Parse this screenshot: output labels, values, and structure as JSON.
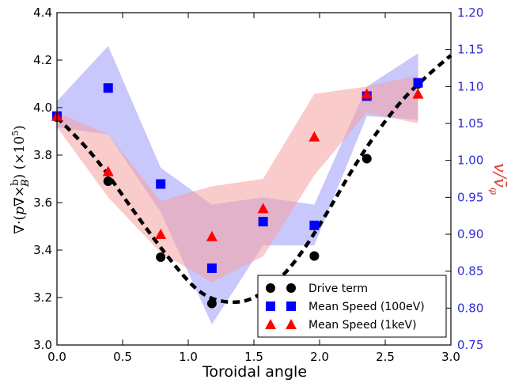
{
  "chart_data": {
    "type": "scatter",
    "xlabel": "Toroidal angle",
    "ylabel_left": "∇·(p∇×b/B) (×10⁵)",
    "ylabel_right": "v/v̄_φ",
    "xlim": [
      0.0,
      3.0
    ],
    "ylim_left": [
      3.0,
      4.4
    ],
    "ylim_right": [
      0.75,
      1.2
    ],
    "x_ticks": [
      "0.0",
      "0.5",
      "1.0",
      "1.5",
      "2.0",
      "2.5",
      "3.0"
    ],
    "y_left_ticks": [
      "3.0",
      "3.2",
      "3.4",
      "3.6",
      "3.8",
      "4.0",
      "4.2",
      "4.4"
    ],
    "y_right_ticks": [
      "0.75",
      "0.80",
      "0.85",
      "0.90",
      "0.95",
      "1.00",
      "1.05",
      "1.10",
      "1.15",
      "1.20"
    ],
    "colors": {
      "drive": "#000000",
      "speed_100ev": "#0000ff",
      "speed_1kev": "#ff0000",
      "band_100ev": "#9b9bfa",
      "band_1kev": "#f6a0a0",
      "right_axis": "#2b2bd9"
    },
    "series": [
      {
        "name": "Drive term",
        "axis": "left",
        "marker": "circle",
        "points": [
          {
            "x": 0.0,
            "y": 3.96
          },
          {
            "x": 0.39,
            "y": 3.69
          },
          {
            "x": 0.79,
            "y": 3.37
          },
          {
            "x": 1.18,
            "y": 3.175
          },
          {
            "x": 1.96,
            "y": 3.375
          },
          {
            "x": 2.36,
            "y": 3.785
          },
          {
            "x": 2.75,
            "y": 4.1
          }
        ],
        "fit_curve": [
          {
            "x": 0.0,
            "y": 3.96
          },
          {
            "x": 0.3,
            "y": 3.79
          },
          {
            "x": 0.6,
            "y": 3.55
          },
          {
            "x": 0.9,
            "y": 3.33
          },
          {
            "x": 1.1,
            "y": 3.21
          },
          {
            "x": 1.3,
            "y": 3.175
          },
          {
            "x": 1.5,
            "y": 3.19
          },
          {
            "x": 1.75,
            "y": 3.3
          },
          {
            "x": 2.0,
            "y": 3.5
          },
          {
            "x": 2.3,
            "y": 3.79
          },
          {
            "x": 2.6,
            "y": 4.02
          },
          {
            "x": 2.85,
            "y": 4.15
          },
          {
            "x": 3.0,
            "y": 4.22
          }
        ]
      },
      {
        "name": "Mean Speed (100eV)",
        "axis": "right",
        "marker": "square",
        "points": [
          {
            "x": 0.0,
            "y": 1.06
          },
          {
            "x": 0.39,
            "y": 1.098
          },
          {
            "x": 0.79,
            "y": 0.968
          },
          {
            "x": 1.18,
            "y": 0.854
          },
          {
            "x": 1.57,
            "y": 0.917
          },
          {
            "x": 1.96,
            "y": 0.912
          },
          {
            "x": 2.36,
            "y": 1.087
          },
          {
            "x": 2.75,
            "y": 1.105
          }
        ],
        "band_upper": [
          1.08,
          1.155,
          0.99,
          0.94,
          0.95,
          0.94,
          1.1,
          1.145
        ],
        "band_lower": [
          1.045,
          1.035,
          0.93,
          0.778,
          0.885,
          0.885,
          1.06,
          1.055
        ]
      },
      {
        "name": "Mean Speed (1keV)",
        "axis": "right",
        "marker": "triangle",
        "points": [
          {
            "x": 0.0,
            "y": 1.06
          },
          {
            "x": 0.39,
            "y": 0.985
          },
          {
            "x": 0.79,
            "y": 0.9
          },
          {
            "x": 1.18,
            "y": 0.897
          },
          {
            "x": 1.57,
            "y": 0.935
          },
          {
            "x": 1.96,
            "y": 1.032
          },
          {
            "x": 2.36,
            "y": 1.09
          },
          {
            "x": 2.75,
            "y": 1.09
          }
        ],
        "band_upper": [
          1.065,
          1.035,
          0.945,
          0.965,
          0.975,
          1.09,
          1.1,
          1.115
        ],
        "band_lower": [
          1.045,
          0.95,
          0.875,
          0.835,
          0.87,
          0.98,
          1.065,
          1.05
        ]
      }
    ],
    "legend": {
      "position": "bottom-right",
      "entries": [
        "Drive term",
        "Mean Speed (100eV)",
        "Mean Speed (1keV)"
      ]
    },
    "grid": false
  }
}
